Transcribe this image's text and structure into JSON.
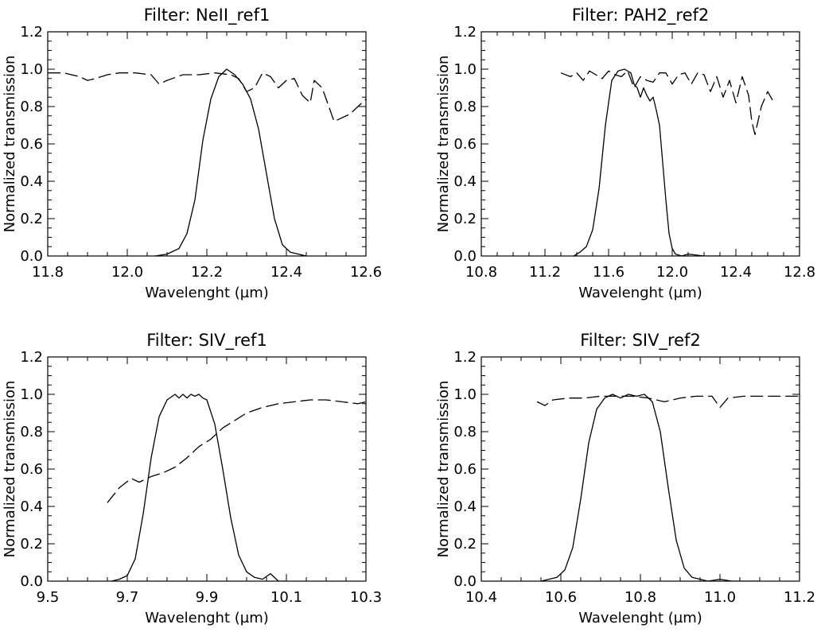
{
  "chart_data": [
    {
      "type": "line",
      "title": "Filter: NeII_ref1",
      "xlabel": "Wavelenght (µm)",
      "ylabel": "Normalized transmission",
      "xlim": [
        11.8,
        12.6
      ],
      "ylim": [
        0,
        1.2
      ],
      "xticks": [
        "11.8",
        "12.0",
        "12.2",
        "12.4",
        "12.6"
      ],
      "yticks": [
        "0.0",
        "0.2",
        "0.4",
        "0.6",
        "0.8",
        "1.0",
        "1.2"
      ],
      "series": [
        {
          "style": "solid",
          "x": [
            12.07,
            12.1,
            12.13,
            12.15,
            12.17,
            12.19,
            12.21,
            12.23,
            12.25,
            12.27,
            12.29,
            12.31,
            12.33,
            12.35,
            12.37,
            12.39,
            12.41,
            12.43,
            12.45,
            12.47,
            12.5,
            12.53
          ],
          "y": [
            0.0,
            0.01,
            0.04,
            0.12,
            0.3,
            0.62,
            0.84,
            0.96,
            1.0,
            0.97,
            0.92,
            0.84,
            0.68,
            0.44,
            0.2,
            0.06,
            0.02,
            0.01,
            0.0,
            -0.01,
            0.0,
            -0.01
          ]
        },
        {
          "style": "dashed",
          "x": [
            11.8,
            11.84,
            11.88,
            11.9,
            11.92,
            11.95,
            11.98,
            12.02,
            12.06,
            12.08,
            12.1,
            12.14,
            12.18,
            12.22,
            12.26,
            12.28,
            12.3,
            12.32,
            12.34,
            12.36,
            12.38,
            12.4,
            12.42,
            12.44,
            12.46,
            12.47,
            12.48,
            12.49,
            12.5,
            12.52,
            12.56,
            12.6
          ],
          "y": [
            0.98,
            0.98,
            0.96,
            0.94,
            0.95,
            0.97,
            0.98,
            0.98,
            0.97,
            0.92,
            0.94,
            0.97,
            0.97,
            0.98,
            0.97,
            0.95,
            0.88,
            0.9,
            0.98,
            0.96,
            0.9,
            0.94,
            0.95,
            0.86,
            0.82,
            0.94,
            0.92,
            0.9,
            0.84,
            0.72,
            0.76,
            0.84
          ]
        }
      ]
    },
    {
      "type": "line",
      "title": "Filter: PAH2_ref2",
      "xlabel": "Wavelenght (µm)",
      "ylabel": "Normalized transmission",
      "xlim": [
        10.8,
        12.8
      ],
      "ylim": [
        0,
        1.2
      ],
      "xticks": [
        "10.8",
        "11.2",
        "11.6",
        "12.0",
        "12.4",
        "12.8"
      ],
      "yticks": [
        "0.0",
        "0.2",
        "0.4",
        "0.6",
        "0.8",
        "1.0",
        "1.2"
      ],
      "series": [
        {
          "style": "solid",
          "x": [
            11.38,
            11.42,
            11.46,
            11.5,
            11.54,
            11.58,
            11.62,
            11.66,
            11.7,
            11.74,
            11.76,
            11.78,
            11.8,
            11.82,
            11.84,
            11.86,
            11.88,
            11.9,
            11.92,
            11.94,
            11.96,
            11.98,
            12.0,
            12.02,
            12.06,
            12.1,
            12.2,
            12.3
          ],
          "y": [
            0.0,
            0.02,
            0.05,
            0.14,
            0.36,
            0.7,
            0.94,
            0.99,
            1.0,
            0.98,
            0.92,
            0.9,
            0.85,
            0.9,
            0.86,
            0.83,
            0.85,
            0.78,
            0.7,
            0.5,
            0.3,
            0.12,
            0.04,
            0.01,
            0.0,
            0.01,
            0.0,
            0.0
          ]
        },
        {
          "style": "dashed",
          "x": [
            11.3,
            11.36,
            11.4,
            11.44,
            11.48,
            11.52,
            11.56,
            11.6,
            11.64,
            11.68,
            11.72,
            11.76,
            11.8,
            11.84,
            11.88,
            11.92,
            11.96,
            12.0,
            12.04,
            12.08,
            12.12,
            12.16,
            12.2,
            12.24,
            12.28,
            12.32,
            12.36,
            12.4,
            12.44,
            12.48,
            12.5,
            12.52,
            12.56,
            12.6,
            12.64
          ],
          "y": [
            0.98,
            0.96,
            0.98,
            0.94,
            0.99,
            0.97,
            0.95,
            0.99,
            0.97,
            0.96,
            0.99,
            0.9,
            0.96,
            0.94,
            0.93,
            0.98,
            0.98,
            0.92,
            0.97,
            0.98,
            0.92,
            0.98,
            0.97,
            0.88,
            0.96,
            0.85,
            0.94,
            0.82,
            0.96,
            0.86,
            0.72,
            0.65,
            0.8,
            0.88,
            0.82
          ]
        }
      ]
    },
    {
      "type": "line",
      "title": "Filter: SIV_ref1",
      "xlabel": "Wavelenght (µm)",
      "ylabel": "Normalized transmission",
      "xlim": [
        9.5,
        10.3
      ],
      "ylim": [
        0,
        1.2
      ],
      "xticks": [
        "9.5",
        "9.7",
        "9.9",
        "10.1",
        "10.3"
      ],
      "yticks": [
        "0.0",
        "0.2",
        "0.4",
        "0.6",
        "0.8",
        "1.0",
        "1.2"
      ],
      "series": [
        {
          "style": "solid",
          "x": [
            9.66,
            9.68,
            9.7,
            9.72,
            9.74,
            9.76,
            9.78,
            9.8,
            9.82,
            9.83,
            9.84,
            9.85,
            9.86,
            9.87,
            9.88,
            9.89,
            9.9,
            9.92,
            9.94,
            9.96,
            9.98,
            10.0,
            10.02,
            10.04,
            10.06,
            10.08,
            10.1
          ],
          "y": [
            0.0,
            0.01,
            0.03,
            0.12,
            0.36,
            0.66,
            0.88,
            0.97,
            1.0,
            0.98,
            1.0,
            0.98,
            1.0,
            0.99,
            1.0,
            0.98,
            0.97,
            0.84,
            0.6,
            0.34,
            0.14,
            0.05,
            0.02,
            0.01,
            0.04,
            0.0,
            0.0
          ]
        },
        {
          "style": "dashed",
          "x": [
            9.65,
            9.68,
            9.71,
            9.73,
            9.76,
            9.79,
            9.82,
            9.85,
            9.88,
            9.91,
            9.94,
            9.97,
            10.0,
            10.04,
            10.08,
            10.12,
            10.16,
            10.2,
            10.24,
            10.28,
            10.3
          ],
          "y": [
            0.42,
            0.5,
            0.55,
            0.53,
            0.56,
            0.58,
            0.61,
            0.66,
            0.72,
            0.76,
            0.82,
            0.86,
            0.9,
            0.93,
            0.95,
            0.96,
            0.97,
            0.97,
            0.96,
            0.95,
            0.96
          ]
        }
      ]
    },
    {
      "type": "line",
      "title": "Filter: SIV_ref2",
      "xlabel": "Wavelenght (µm)",
      "ylabel": "Normalized transmission",
      "xlim": [
        10.4,
        11.2
      ],
      "ylim": [
        0,
        1.2
      ],
      "xticks": [
        "10.4",
        "10.6",
        "10.8",
        "11.0",
        "11.2"
      ],
      "yticks": [
        "0.0",
        "0.2",
        "0.4",
        "0.6",
        "0.8",
        "1.0",
        "1.2"
      ],
      "series": [
        {
          "style": "solid",
          "x": [
            10.55,
            10.57,
            10.59,
            10.61,
            10.63,
            10.65,
            10.67,
            10.69,
            10.71,
            10.73,
            10.75,
            10.77,
            10.79,
            10.81,
            10.83,
            10.85,
            10.87,
            10.89,
            10.91,
            10.93,
            10.95,
            10.97,
            11.0,
            11.03,
            11.06,
            11.1
          ],
          "y": [
            0.0,
            0.01,
            0.02,
            0.06,
            0.18,
            0.44,
            0.74,
            0.92,
            0.98,
            1.0,
            0.98,
            1.0,
            0.99,
            1.0,
            0.96,
            0.8,
            0.5,
            0.22,
            0.07,
            0.02,
            0.01,
            0.0,
            0.01,
            0.0,
            0.0,
            0.0
          ]
        },
        {
          "style": "dashed",
          "x": [
            10.54,
            10.56,
            10.58,
            10.62,
            10.66,
            10.7,
            10.74,
            10.78,
            10.82,
            10.86,
            10.9,
            10.94,
            10.98,
            11.0,
            11.02,
            11.06,
            11.1,
            11.14,
            11.18,
            11.2
          ],
          "y": [
            0.96,
            0.94,
            0.97,
            0.98,
            0.98,
            0.99,
            0.99,
            0.99,
            0.98,
            0.96,
            0.98,
            0.99,
            0.99,
            0.93,
            0.98,
            0.99,
            0.99,
            0.99,
            0.99,
            0.99
          ]
        }
      ]
    }
  ]
}
